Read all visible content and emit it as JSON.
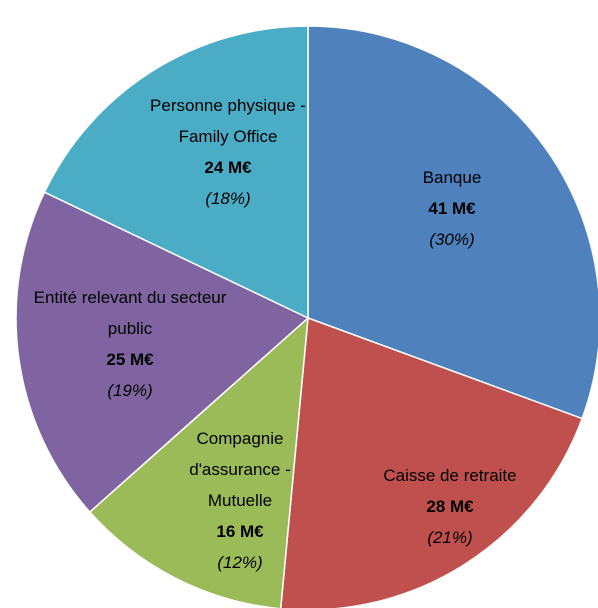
{
  "chart_data": {
    "type": "pie",
    "categories": [
      "Banque",
      "Caisse de retraite",
      "Compagnie d'assurance - Mutuelle",
      "Entité relevant du secteur public",
      "Personne physique - Family Office"
    ],
    "values": [
      41,
      28,
      16,
      25,
      24
    ],
    "value_labels": [
      "41 M€",
      "28 M€",
      "16 M€",
      "25 M€",
      "24 M€"
    ],
    "shares": [
      30,
      21,
      12,
      19,
      18
    ],
    "share_labels": [
      "(30%)",
      "(21%)",
      "(12%)",
      "(19%)",
      "(18%)"
    ],
    "colors": [
      "#4f81bd",
      "#c0504d",
      "#9bbb59",
      "#8064a2",
      "#4bacc6"
    ]
  }
}
